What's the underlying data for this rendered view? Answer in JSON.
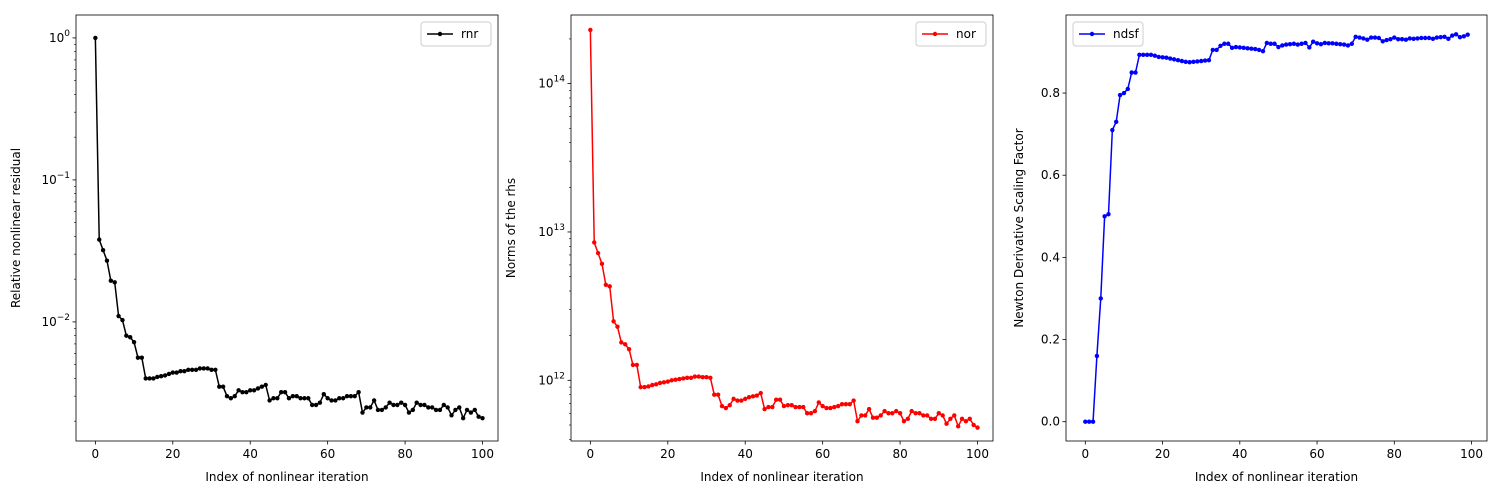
{
  "chart_data": [
    {
      "type": "line",
      "xlabel": "Index of nonlinear iteration",
      "ylabel": "Relative nonlinear residual",
      "yscale": "log",
      "xlim": [
        -5,
        104
      ],
      "ylim": [
        0.00145,
        1.45
      ],
      "x_ticks": [
        0,
        20,
        40,
        60,
        80,
        100
      ],
      "y_ticks": [
        {
          "value": 0.01,
          "base": "10",
          "exp": "−2"
        },
        {
          "value": 0.1,
          "base": "10",
          "exp": "−1"
        },
        {
          "value": 1,
          "base": "10",
          "exp": "0"
        }
      ],
      "legend_position": "upper right",
      "series": [
        {
          "name": "rnr",
          "color": "#000000",
          "x_start": 0,
          "values": [
            1.0,
            0.038,
            0.032,
            0.027,
            0.0195,
            0.019,
            0.011,
            0.0103,
            0.008,
            0.0078,
            0.0072,
            0.0056,
            0.0056,
            0.004,
            0.004,
            0.004,
            0.0041,
            0.00415,
            0.0042,
            0.0043,
            0.0044,
            0.0044,
            0.0045,
            0.0045,
            0.0046,
            0.0046,
            0.0046,
            0.0047,
            0.0047,
            0.0047,
            0.0046,
            0.0046,
            0.0035,
            0.0035,
            0.003,
            0.0029,
            0.003,
            0.0033,
            0.0032,
            0.0032,
            0.0033,
            0.0033,
            0.0034,
            0.0035,
            0.0036,
            0.0028,
            0.0029,
            0.0029,
            0.0032,
            0.0032,
            0.0029,
            0.003,
            0.003,
            0.0029,
            0.0029,
            0.0029,
            0.0026,
            0.0026,
            0.0027,
            0.0031,
            0.0029,
            0.0028,
            0.0028,
            0.0029,
            0.0029,
            0.003,
            0.003,
            0.003,
            0.0032,
            0.0023,
            0.0025,
            0.0025,
            0.0028,
            0.0024,
            0.0024,
            0.0025,
            0.0027,
            0.0026,
            0.0026,
            0.0027,
            0.0026,
            0.0023,
            0.0024,
            0.0027,
            0.0026,
            0.0026,
            0.0025,
            0.0025,
            0.0024,
            0.0024,
            0.0026,
            0.0025,
            0.0022,
            0.0024,
            0.0025,
            0.0021,
            0.0024,
            0.0023,
            0.0024,
            0.00215,
            0.0021
          ]
        }
      ]
    },
    {
      "type": "line",
      "xlabel": "Index of nonlinear iteration",
      "ylabel": "Norms of the rhs",
      "yscale": "log",
      "xlim": [
        -5,
        104
      ],
      "ylim": [
        390000000000.0,
        290000000000000.0
      ],
      "x_ticks": [
        0,
        20,
        40,
        60,
        80,
        100
      ],
      "y_ticks": [
        {
          "value": 1000000000000.0,
          "base": "10",
          "exp": "12"
        },
        {
          "value": 10000000000000.0,
          "base": "10",
          "exp": "13"
        },
        {
          "value": 100000000000000.0,
          "base": "10",
          "exp": "14"
        }
      ],
      "legend_position": "upper right",
      "series": [
        {
          "name": "nor",
          "color": "#ff0000",
          "x_start": 0,
          "values": [
            230000000000000.0,
            8500000000000.0,
            7200000000000.0,
            6100000000000.0,
            4400000000000.0,
            4300000000000.0,
            2500000000000.0,
            2300000000000.0,
            1800000000000.0,
            1750000000000.0,
            1620000000000.0,
            1270000000000.0,
            1270000000000.0,
            900000000000.0,
            900000000000.0,
            910000000000.0,
            930000000000.0,
            940000000000.0,
            960000000000.0,
            970000000000.0,
            980000000000.0,
            1000000000000.0,
            1010000000000.0,
            1020000000000.0,
            1030000000000.0,
            1040000000000.0,
            1040000000000.0,
            1060000000000.0,
            1060000000000.0,
            1050000000000.0,
            1050000000000.0,
            1040000000000.0,
            800000000000.0,
            800000000000.0,
            670000000000.0,
            650000000000.0,
            680000000000.0,
            750000000000.0,
            730000000000.0,
            730000000000.0,
            750000000000.0,
            770000000000.0,
            780000000000.0,
            790000000000.0,
            820000000000.0,
            640000000000.0,
            660000000000.0,
            660000000000.0,
            740000000000.0,
            740000000000.0,
            670000000000.0,
            680000000000.0,
            680000000000.0,
            660000000000.0,
            660000000000.0,
            660000000000.0,
            600000000000.0,
            600000000000.0,
            620000000000.0,
            710000000000.0,
            670000000000.0,
            650000000000.0,
            650000000000.0,
            660000000000.0,
            670000000000.0,
            690000000000.0,
            690000000000.0,
            690000000000.0,
            730000000000.0,
            530000000000.0,
            580000000000.0,
            580000000000.0,
            640000000000.0,
            560000000000.0,
            560000000000.0,
            580000000000.0,
            620000000000.0,
            600000000000.0,
            600000000000.0,
            620000000000.0,
            600000000000.0,
            530000000000.0,
            550000000000.0,
            620000000000.0,
            600000000000.0,
            600000000000.0,
            580000000000.0,
            580000000000.0,
            550000000000.0,
            550000000000.0,
            600000000000.0,
            580000000000.0,
            510000000000.0,
            550000000000.0,
            580000000000.0,
            490000000000.0,
            550000000000.0,
            530000000000.0,
            550000000000.0,
            500000000000.0,
            480000000000.0
          ]
        }
      ]
    },
    {
      "type": "line",
      "xlabel": "Index of nonlinear iteration",
      "ylabel": "Newton Derivative Scaling Factor",
      "yscale": "linear",
      "xlim": [
        -5,
        104
      ],
      "ylim": [
        -0.047,
        0.99
      ],
      "x_ticks": [
        0,
        20,
        40,
        60,
        80,
        100
      ],
      "y_ticks": [
        {
          "value": 0,
          "label": "0.0"
        },
        {
          "value": 0.2,
          "label": "0.2"
        },
        {
          "value": 0.4,
          "label": "0.4"
        },
        {
          "value": 0.6,
          "label": "0.6"
        },
        {
          "value": 0.8,
          "label": "0.8"
        }
      ],
      "legend_position": "upper left",
      "series": [
        {
          "name": "ndsf",
          "color": "#0000ff",
          "x_start": 0,
          "values": [
            0.0,
            0.0,
            0.0,
            0.16,
            0.3,
            0.5,
            0.505,
            0.71,
            0.73,
            0.795,
            0.8,
            0.81,
            0.85,
            0.85,
            0.893,
            0.893,
            0.893,
            0.893,
            0.891,
            0.888,
            0.887,
            0.886,
            0.884,
            0.882,
            0.88,
            0.878,
            0.876,
            0.875,
            0.876,
            0.877,
            0.878,
            0.879,
            0.88,
            0.905,
            0.905,
            0.915,
            0.92,
            0.92,
            0.91,
            0.912,
            0.911,
            0.91,
            0.909,
            0.908,
            0.907,
            0.905,
            0.902,
            0.922,
            0.92,
            0.92,
            0.912,
            0.916,
            0.918,
            0.919,
            0.92,
            0.918,
            0.92,
            0.922,
            0.911,
            0.925,
            0.921,
            0.919,
            0.922,
            0.921,
            0.921,
            0.92,
            0.919,
            0.918,
            0.916,
            0.92,
            0.937,
            0.935,
            0.933,
            0.93,
            0.935,
            0.935,
            0.934,
            0.926,
            0.929,
            0.931,
            0.935,
            0.931,
            0.931,
            0.93,
            0.933,
            0.932,
            0.933,
            0.934,
            0.934,
            0.934,
            0.932,
            0.935,
            0.936,
            0.937,
            0.932,
            0.94,
            0.943,
            0.936,
            0.938,
            0.942
          ]
        }
      ]
    }
  ]
}
